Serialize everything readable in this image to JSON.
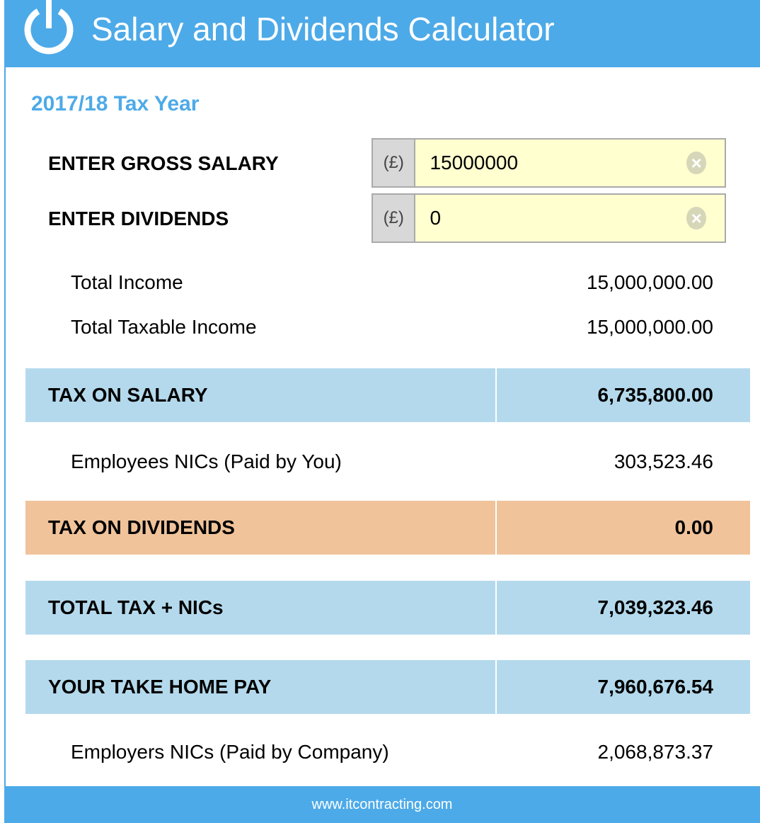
{
  "colors": {
    "brand": "#4daae8",
    "blue_band": "#b4d9ec",
    "orange_band": "#f0c39a",
    "input_bg": "#ffffd0"
  },
  "header": {
    "title": "Salary and Dividends Calculator",
    "icon": "power-icon"
  },
  "tax_year": "2017/18 Tax Year",
  "inputs": {
    "salary": {
      "label": "ENTER GROSS SALARY",
      "currency": "(£)",
      "value": "15000000"
    },
    "dividends": {
      "label": "ENTER DIVIDENDS",
      "currency": "(£)",
      "value": "0"
    }
  },
  "summary": {
    "total_income": {
      "label": "Total Income",
      "value": "15,000,000.00"
    },
    "total_taxable_income": {
      "label": "Total Taxable Income",
      "value": "15,000,000.00"
    }
  },
  "bands": {
    "tax_on_salary": {
      "label": "TAX ON SALARY",
      "value": "6,735,800.00"
    },
    "employees_nics": {
      "label": "Employees NICs (Paid by You)",
      "value": "303,523.46"
    },
    "tax_on_dividends": {
      "label": "TAX ON DIVIDENDS",
      "value": "0.00"
    },
    "total_tax": {
      "label": "TOTAL TAX + NICs",
      "value": "7,039,323.46"
    },
    "take_home": {
      "label": "YOUR TAKE HOME PAY",
      "value": "7,960,676.54"
    },
    "employers_nics": {
      "label": "Employers NICs (Paid by Company)",
      "value": "2,068,873.37"
    }
  },
  "footer": {
    "link": "www.itcontracting.com"
  }
}
